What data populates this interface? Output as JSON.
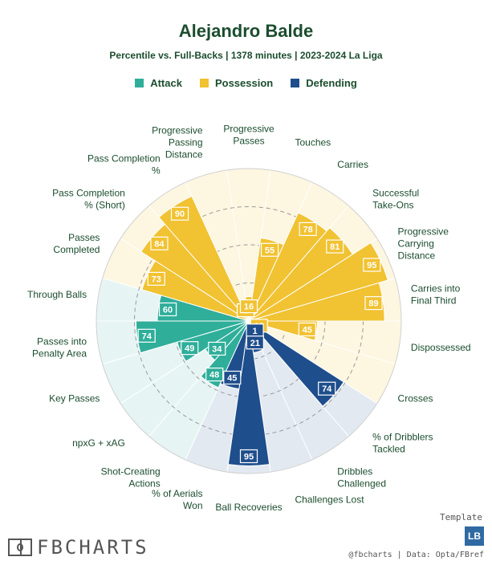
{
  "title": "Alejandro Balde",
  "subtitle": "Percentile vs. Full-Backs | 1378 minutes | 2023-2024 La Liga",
  "legend": [
    {
      "label": "Attack",
      "color": "#2fae9a"
    },
    {
      "label": "Possession",
      "color": "#f1c232"
    },
    {
      "label": "Defending",
      "color": "#1f4e8c"
    }
  ],
  "chart_data": {
    "type": "polar-bar",
    "max": 100,
    "categories": [
      {
        "label": "Pass Completion % (Short)",
        "value": 84,
        "group": "Possession"
      },
      {
        "label": "Pass Completion %",
        "value": 90,
        "group": "Possession"
      },
      {
        "label": "Progressive Passing Distance",
        "value": 6,
        "group": "Possession"
      },
      {
        "label": "Progressive Passes",
        "value": 16,
        "group": "Possession"
      },
      {
        "label": "Touches",
        "value": 55,
        "group": "Possession"
      },
      {
        "label": "Carries",
        "value": 78,
        "group": "Possession"
      },
      {
        "label": "Successful Take-Ons",
        "value": 81,
        "group": "Possession"
      },
      {
        "label": "Progressive Carrying Distance",
        "value": 95,
        "group": "Possession"
      },
      {
        "label": "Carries into Final Third",
        "value": 89,
        "group": "Possession"
      },
      {
        "label": "Dispossessed",
        "value": 45,
        "group": "Possession"
      },
      {
        "label": "Crosses",
        "value": 12,
        "group": "Possession"
      },
      {
        "label": "% of Dribblers Tackled",
        "value": 74,
        "group": "Defending"
      },
      {
        "label": "Dribbles Challenged",
        "value": 1,
        "group": "Defending"
      },
      {
        "label": "Challenges Lost",
        "value": 21,
        "group": "Defending"
      },
      {
        "label": "Ball Recoveries",
        "value": 95,
        "group": "Defending"
      },
      {
        "label": "% of Aerials Won",
        "value": 45,
        "group": "Defending"
      },
      {
        "label": "Shot-Creating Actions",
        "value": 48,
        "group": "Attack"
      },
      {
        "label": "npxG + xAG",
        "value": 34,
        "group": "Attack"
      },
      {
        "label": "Key Passes",
        "value": 49,
        "group": "Attack"
      },
      {
        "label": "Passes into Penalty Area",
        "value": 74,
        "group": "Attack"
      },
      {
        "label": "Through Balls",
        "value": 60,
        "group": "Attack"
      },
      {
        "label": "Passes Completed",
        "value": 73,
        "group": "Possession"
      }
    ],
    "group_colors": {
      "Attack": {
        "bar": "#2fae9a",
        "bg": "#e6f4f4"
      },
      "Possession": {
        "bar": "#f1c232",
        "bg": "#fdf6e0"
      },
      "Defending": {
        "bar": "#1f4e8c",
        "bg": "#e2e9f1"
      }
    }
  },
  "footer": {
    "brand": "FBCHARTS",
    "template_label": "Template",
    "badge": "LB",
    "credit": "@fbcharts | Data: Opta/FBref"
  }
}
